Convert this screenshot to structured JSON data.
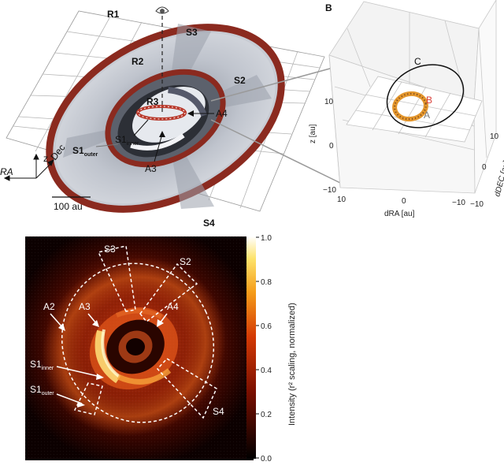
{
  "panelA": {
    "rings": [
      "R1",
      "R2",
      "R3"
    ],
    "sectors": [
      "S2",
      "S3",
      "S4"
    ],
    "s1_outer_main": "S1",
    "s1_outer_sub": "outer",
    "s1_inner_main": "S1",
    "s1_inner_sub": "inner",
    "arcs": [
      "A3",
      "A4"
    ],
    "scale_label": "100 au",
    "axes": {
      "z": "z",
      "dec": "Dec",
      "ra": "RA"
    }
  },
  "panelB": {
    "panel_label": "B",
    "labels": {
      "C": "C",
      "B": "B",
      "A": "A"
    },
    "colors": {
      "B": "#d9403a",
      "A": "#777777",
      "C": "#111111"
    },
    "z_axis_label": "z [au]",
    "dra_axis_label": "dRA [au]",
    "ddec_axis_label": "dDEC [au]",
    "z_ticks": [
      "10",
      "0",
      "−10"
    ],
    "dra_ticks": [
      "10",
      "0",
      "−10"
    ],
    "ddec_ticks": [
      "−10",
      "0",
      "10"
    ]
  },
  "panelC": {
    "labels": [
      "S3",
      "S2",
      "A2",
      "A3",
      "A4",
      "S4"
    ],
    "s1_inner_main": "S1",
    "s1_inner_sub": "inner",
    "s1_outer_main": "S1",
    "s1_outer_sub": "outer",
    "colorbar_label": "Intensity (r² scaling, normalized)",
    "colorbar_ticks": [
      "1.0",
      "0.8",
      "0.6",
      "0.4",
      "0.2",
      "0.0"
    ]
  }
}
